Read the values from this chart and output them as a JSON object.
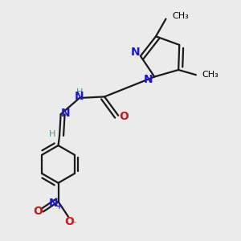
{
  "bg_color": "#ebebeb",
  "bond_color": "#1a1a1a",
  "bond_lw": 1.6,
  "label_colors": {
    "N": "#1a1acc",
    "O": "#cc1a1a",
    "H": "#4a9090",
    "C": "#1a1a1a"
  },
  "font_size": 10,
  "font_size_small": 8
}
